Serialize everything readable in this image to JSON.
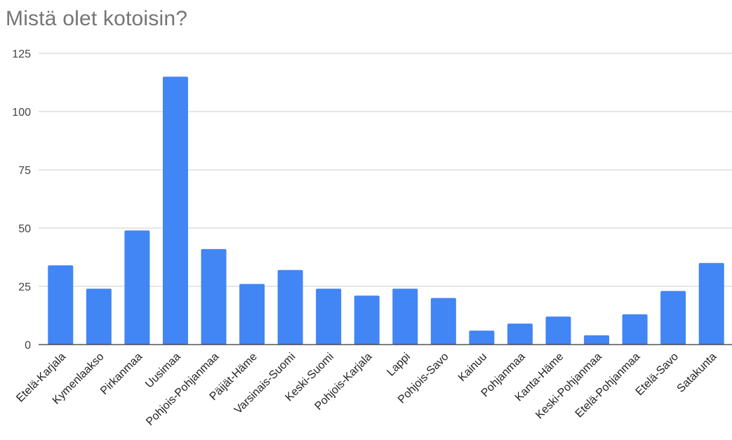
{
  "chart_data": {
    "type": "bar",
    "title": "Mistä olet kotoisin?",
    "xlabel": "",
    "ylabel": "",
    "categories": [
      "Etelä-Karjala",
      "Kymenlaakso",
      "Pirkanmaa",
      "Uusimaa",
      "Pohjois-Pohjanmaa",
      "Päijät-Häme",
      "Varsinais-Suomi",
      "Keski-Suomi",
      "Pohjois-Karjala",
      "Lappi",
      "Pohjois-Savo",
      "Kainuu",
      "Pohjanmaa",
      "Kanta-Häme",
      "Keski-Pohjanmaa",
      "Etelä-Pohjanmaa",
      "Etelä-Savo",
      "Satakunta"
    ],
    "values": [
      34,
      24,
      49,
      115,
      41,
      26,
      32,
      24,
      21,
      24,
      20,
      6,
      9,
      12,
      4,
      13,
      23,
      35
    ],
    "ylim": [
      0,
      125
    ],
    "yticks": [
      0,
      25,
      50,
      75,
      100,
      125
    ],
    "grid": true,
    "legend": "none",
    "bar_color": "#4285f4",
    "grid_color": "#cccccc",
    "axis_color": "#333333"
  }
}
